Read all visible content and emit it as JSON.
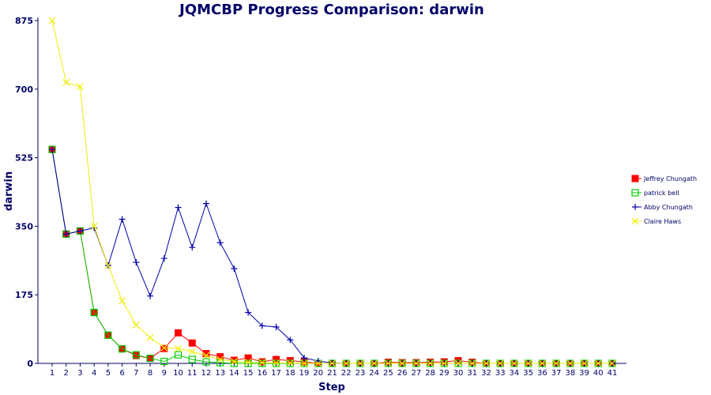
{
  "chart_data": {
    "type": "line",
    "title": "JQMCBP Progress Comparison: darwin",
    "xlabel": "Step",
    "ylabel": "darwin",
    "ylim": [
      0,
      875
    ],
    "yticks": [
      "0",
      "175",
      "350",
      "525",
      "700",
      "875"
    ],
    "grid": false,
    "legend_position": "right",
    "x": [
      1,
      2,
      3,
      4,
      5,
      6,
      7,
      8,
      9,
      10,
      11,
      12,
      13,
      14,
      15,
      16,
      17,
      18,
      19,
      20,
      21,
      22,
      23,
      24,
      25,
      26,
      27,
      28,
      29,
      30,
      31,
      32,
      33,
      34,
      35,
      36,
      37,
      38,
      39,
      40,
      41
    ],
    "series": [
      {
        "name": "Jeffrey Chungath",
        "color": "#ff0000",
        "marker": "filled-square",
        "values": [
          546,
          330,
          338,
          130,
          72,
          37,
          20,
          13,
          38,
          78,
          52,
          25,
          17,
          8,
          14,
          4,
          10,
          7,
          4,
          0,
          0,
          0,
          0,
          0,
          3,
          2,
          2,
          3,
          4,
          7,
          3,
          0,
          0,
          0,
          0,
          0,
          0,
          0,
          0,
          0,
          0
        ]
      },
      {
        "name": "patrick bell",
        "color": "#00cc00",
        "marker": "open-square",
        "values": [
          546,
          330,
          338,
          130,
          72,
          37,
          22,
          13,
          5,
          22,
          10,
          4,
          2,
          0,
          0,
          0,
          0,
          0,
          0,
          0,
          0,
          0,
          0,
          0,
          0,
          0,
          0,
          0,
          0,
          0,
          0,
          0,
          0,
          0,
          0,
          0,
          0,
          0,
          0,
          0,
          0
        ]
      },
      {
        "name": "Abby Chungath",
        "color": "#0000aa",
        "marker": "plus",
        "values": [
          546,
          330,
          338,
          346,
          250,
          368,
          258,
          172,
          268,
          398,
          296,
          408,
          308,
          242,
          130,
          96,
          93,
          60,
          14,
          6,
          1,
          0,
          0,
          0,
          0,
          0,
          0,
          0,
          0,
          0,
          0,
          0,
          0,
          0,
          0,
          0,
          0,
          0,
          0,
          0,
          0
        ]
      },
      {
        "name": "Claire Haws",
        "color": "#eeee00",
        "marker": "x",
        "values": [
          875,
          717,
          706,
          350,
          250,
          160,
          98,
          66,
          40,
          38,
          30,
          20,
          10,
          5,
          3,
          2,
          1,
          1,
          0,
          0,
          0,
          0,
          0,
          0,
          0,
          0,
          0,
          0,
          0,
          0,
          0,
          0,
          0,
          0,
          0,
          0,
          0,
          0,
          0,
          0,
          0
        ]
      }
    ]
  }
}
